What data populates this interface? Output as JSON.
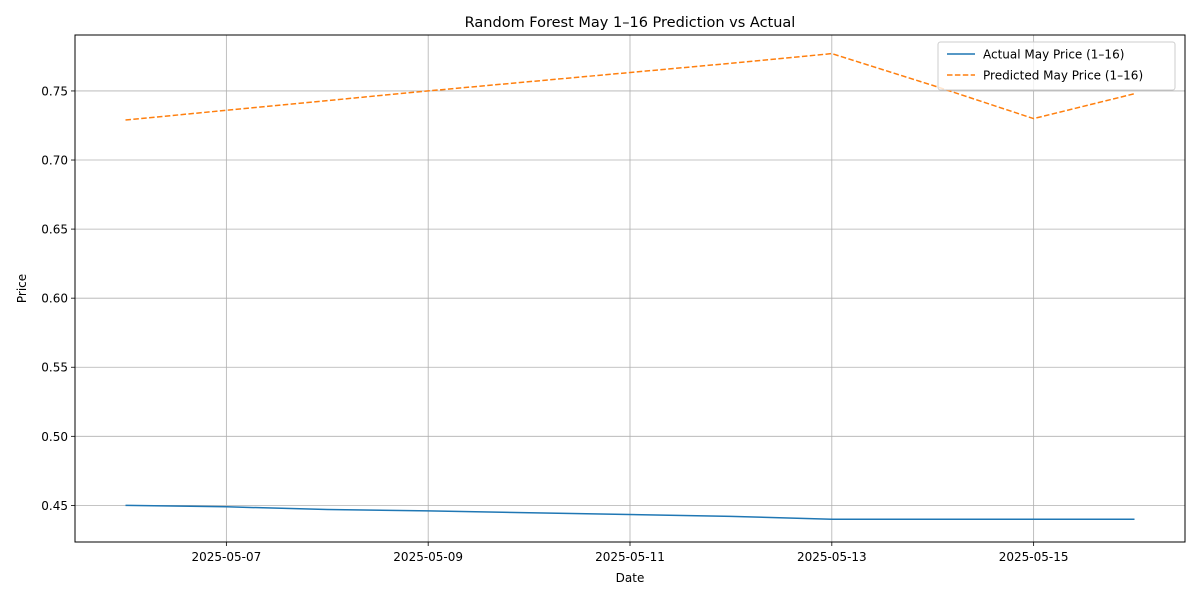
{
  "chart_data": {
    "type": "line",
    "title": "Random Forest May 1–16 Prediction vs Actual",
    "xlabel": "Date",
    "ylabel": "Price",
    "x": [
      "2025-05-06",
      "2025-05-07",
      "2025-05-08",
      "2025-05-09",
      "2025-05-12",
      "2025-05-13",
      "2025-05-14",
      "2025-05-15",
      "2025-05-16"
    ],
    "series": [
      {
        "name": "Actual May Price (1–16)",
        "color": "#1f77b4",
        "style": "solid",
        "values": [
          0.45,
          0.449,
          0.447,
          0.446,
          0.442,
          0.44,
          0.44,
          0.44,
          0.44
        ]
      },
      {
        "name": "Predicted May Price (1–16)",
        "color": "#ff7f0e",
        "style": "dashed",
        "values": [
          0.729,
          0.736,
          0.743,
          0.75,
          0.77,
          0.777,
          0.754,
          0.73,
          0.748
        ]
      }
    ],
    "xticks": [
      "2025-05-07",
      "2025-05-09",
      "2025-05-11",
      "2025-05-13",
      "2025-05-15"
    ],
    "yticks": [
      0.45,
      0.5,
      0.55,
      0.6,
      0.65,
      0.7,
      0.75
    ],
    "xlim": [
      "2025-05-05T12:00",
      "2025-05-16T12:00"
    ],
    "ylim": [
      0.4235,
      0.7905
    ],
    "grid": true,
    "legend": "top-right"
  }
}
